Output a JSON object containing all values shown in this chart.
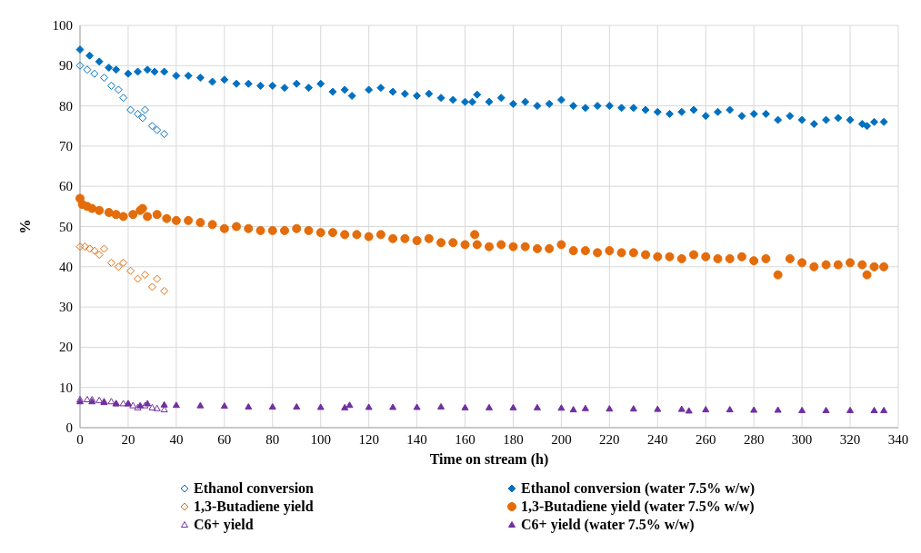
{
  "chart_data": {
    "type": "scatter",
    "xlabel": "Time on stream (h)",
    "ylabel": "%",
    "xlim": [
      0,
      340
    ],
    "ylim": [
      0,
      100
    ],
    "xticks": [
      0,
      20,
      40,
      60,
      80,
      100,
      120,
      140,
      160,
      180,
      200,
      220,
      240,
      260,
      280,
      300,
      320,
      340
    ],
    "yticks": [
      0,
      10,
      20,
      30,
      40,
      50,
      60,
      70,
      80,
      90,
      100
    ],
    "grid": true,
    "legend": "bottom",
    "series": [
      {
        "name": "Ethanol conversion",
        "color": "#0070c0",
        "marker": "diamond",
        "x": [
          0,
          3,
          6,
          10,
          13,
          16,
          18,
          21,
          24,
          26,
          27,
          30,
          32,
          35
        ],
        "values": [
          90,
          89,
          88,
          87,
          85,
          84,
          82,
          79,
          78,
          77,
          79,
          75,
          74,
          73
        ]
      },
      {
        "name": "Ethanol conversion (water 7.5% w/w)",
        "color": "#0070c0",
        "marker": "diamond",
        "x": [
          0,
          4,
          8,
          12,
          15,
          20,
          24,
          28,
          31,
          35,
          40,
          45,
          50,
          55,
          60,
          65,
          70,
          75,
          80,
          85,
          90,
          95,
          100,
          105,
          110,
          113,
          120,
          125,
          130,
          135,
          140,
          145,
          150,
          155,
          160,
          163,
          165,
          170,
          175,
          180,
          185,
          190,
          195,
          200,
          205,
          210,
          215,
          220,
          225,
          230,
          235,
          240,
          245,
          250,
          255,
          260,
          265,
          270,
          275,
          280,
          285,
          290,
          295,
          300,
          305,
          310,
          315,
          320,
          325,
          327,
          330,
          334
        ],
        "values": [
          94,
          92.5,
          91,
          89.5,
          89,
          88,
          88.5,
          89,
          88.5,
          88.5,
          87.5,
          87.5,
          87,
          86,
          86.5,
          85.5,
          85.5,
          85,
          85,
          84.5,
          85.5,
          84.5,
          85.5,
          83.5,
          84,
          82.5,
          84,
          84.5,
          83.5,
          83,
          82.5,
          83,
          82,
          81.5,
          81,
          81,
          82.8,
          81,
          82,
          80.5,
          81,
          80,
          80.5,
          81.5,
          80,
          79.5,
          80,
          80,
          79.5,
          79.5,
          79,
          78.5,
          78,
          78.5,
          79,
          77.5,
          78.5,
          79,
          77.5,
          78,
          78,
          76.5,
          77.5,
          76.5,
          75.5,
          76.5,
          77,
          76.5,
          75.5,
          75,
          76,
          76
        ]
      },
      {
        "name": "1,3-Butadiene yield",
        "color": "#e46c0a",
        "marker": "diamond",
        "x": [
          0,
          2,
          4,
          6,
          8,
          10,
          13,
          16,
          18,
          21,
          24,
          27,
          30,
          32,
          35
        ],
        "values": [
          45,
          45,
          44.5,
          44,
          43,
          44.5,
          41,
          40,
          41,
          39,
          37,
          38,
          35,
          37,
          34
        ]
      },
      {
        "name": "1,3-Butadiene yield (water 7.5% w/w)",
        "color": "#e46c0a",
        "marker": "circle",
        "x": [
          0,
          1,
          3,
          5,
          8,
          12,
          15,
          18,
          22,
          25,
          26,
          28,
          32,
          36,
          40,
          45,
          50,
          55,
          60,
          65,
          70,
          75,
          80,
          85,
          90,
          95,
          100,
          105,
          110,
          115,
          120,
          125,
          130,
          135,
          140,
          145,
          150,
          155,
          160,
          164,
          165,
          170,
          175,
          180,
          185,
          190,
          195,
          200,
          205,
          210,
          215,
          220,
          225,
          230,
          235,
          240,
          245,
          250,
          255,
          260,
          265,
          270,
          275,
          280,
          285,
          290,
          295,
          300,
          305,
          310,
          315,
          320,
          325,
          327,
          330,
          334
        ],
        "values": [
          57,
          55.5,
          55,
          54.5,
          54,
          53.5,
          53,
          52.5,
          53,
          54,
          54.5,
          52.5,
          53,
          52,
          51.5,
          51.5,
          51,
          50.5,
          49.5,
          50,
          49.5,
          49,
          49,
          49,
          49.5,
          49,
          48.5,
          48.5,
          48,
          48,
          47.5,
          48,
          47,
          47,
          46.5,
          47,
          46,
          46,
          45.5,
          48,
          45.5,
          45,
          45.5,
          45,
          45,
          44.5,
          44.5,
          45.5,
          44,
          44,
          43.5,
          44,
          43.5,
          43.5,
          43,
          42.5,
          42.5,
          42,
          43,
          42.5,
          42,
          42,
          42.5,
          41.5,
          42,
          38,
          42,
          41,
          40,
          40.5,
          40.5,
          41,
          40.5,
          38,
          40,
          40
        ]
      },
      {
        "name": "C6+ yield",
        "color": "#7030a0",
        "marker": "triangle",
        "x": [
          0,
          3,
          5,
          8,
          10,
          13,
          15,
          18,
          20,
          22,
          24,
          27,
          30,
          32,
          35
        ],
        "values": [
          7,
          7,
          7,
          6.8,
          6.5,
          6.5,
          6,
          6,
          6,
          5.5,
          5,
          5.5,
          5,
          4.8,
          4.5
        ]
      },
      {
        "name": "C6+ yield (water 7.5% w/w)",
        "color": "#7030a0",
        "marker": "triangle",
        "x": [
          0,
          5,
          10,
          15,
          20,
          25,
          28,
          35,
          40,
          50,
          60,
          70,
          80,
          90,
          100,
          110,
          112,
          120,
          130,
          140,
          150,
          160,
          170,
          180,
          190,
          200,
          205,
          210,
          220,
          230,
          240,
          250,
          253,
          260,
          270,
          280,
          290,
          300,
          310,
          320,
          330,
          334
        ],
        "values": [
          6.5,
          6.5,
          6.3,
          6,
          6,
          5.5,
          6,
          5.7,
          5.6,
          5.5,
          5.4,
          5.2,
          5.2,
          5.2,
          5.1,
          5,
          5.6,
          5.1,
          5.1,
          5.1,
          5.2,
          5,
          5,
          5,
          5,
          4.9,
          4.5,
          4.8,
          4.7,
          4.7,
          4.6,
          4.6,
          4.2,
          4.5,
          4.5,
          4.4,
          4.4,
          4.3,
          4.3,
          4.3,
          4.3,
          4.3
        ]
      }
    ]
  }
}
